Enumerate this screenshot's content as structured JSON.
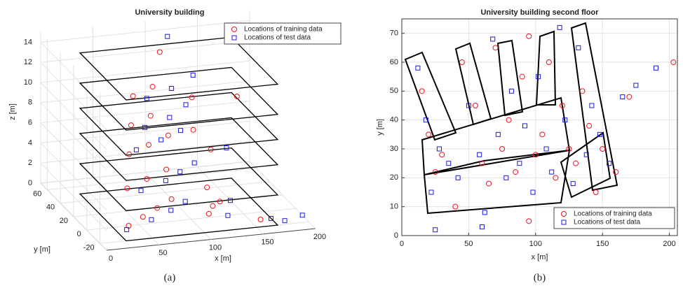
{
  "chart_data": [
    {
      "type": "scatter3d",
      "title": "University building",
      "label": "(a)",
      "xlabel": "x [m]",
      "ylabel": "y [m]",
      "zlabel": "z [m]",
      "xlim": [
        0,
        200
      ],
      "ylim": [
        -30,
        70
      ],
      "zlim": [
        0,
        15
      ],
      "xticks": [
        0,
        50,
        100,
        150,
        200
      ],
      "yticks": [
        -20,
        0,
        20,
        40,
        60
      ],
      "zticks": [
        0,
        2,
        4,
        6,
        8,
        10,
        12,
        14
      ],
      "grid": true,
      "legend": "upper right",
      "series": [
        {
          "name": "Locations of training data",
          "color": "#e8141c",
          "marker": "circle",
          "x": [
            40,
            60,
            80,
            100,
            120,
            130,
            45,
            70,
            95,
            115,
            50,
            75,
            100,
            125,
            55,
            80,
            105,
            60,
            85,
            110,
            140,
            160,
            150,
            95
          ],
          "y": [
            0,
            10,
            20,
            30,
            5,
            15,
            10,
            20,
            30,
            0,
            15,
            25,
            35,
            10,
            20,
            30,
            5,
            25,
            35,
            15,
            20,
            -10,
            10,
            40
          ],
          "z": [
            0,
            0,
            0,
            0,
            0,
            0,
            3,
            3,
            3,
            3,
            6,
            6,
            6,
            6,
            8.5,
            8.5,
            8.5,
            11,
            11,
            11,
            0,
            0,
            11,
            14
          ]
        },
        {
          "name": "Locations of test data",
          "color": "#1a1ae6",
          "marker": "square",
          "x": [
            35,
            65,
            90,
            110,
            135,
            150,
            55,
            85,
            105,
            125,
            170,
            60,
            90,
            115,
            140,
            65,
            95,
            120,
            70,
            100,
            130,
            115,
            180,
            200
          ],
          "y": [
            -5,
            5,
            15,
            25,
            0,
            20,
            5,
            15,
            25,
            35,
            -10,
            20,
            30,
            40,
            10,
            15,
            25,
            40,
            20,
            30,
            45,
            60,
            -15,
            -10
          ],
          "z": [
            0,
            0,
            0,
            0,
            0,
            0,
            3,
            3,
            3,
            3,
            0,
            6,
            6,
            6,
            6,
            8.5,
            8.5,
            8.5,
            11,
            11,
            11,
            14,
            0,
            0
          ]
        }
      ]
    },
    {
      "type": "scatter",
      "title": "University building second floor",
      "label": "(b)",
      "xlabel": "x [m]",
      "ylabel": "y [m]",
      "xlim": [
        0,
        206
      ],
      "ylim": [
        0,
        75
      ],
      "xticks": [
        0,
        50,
        100,
        150,
        200
      ],
      "yticks": [
        0,
        10,
        20,
        30,
        40,
        50,
        60,
        70
      ],
      "grid": true,
      "legend": "lower right",
      "series": [
        {
          "name": "Locations of training data",
          "color": "#e8141c",
          "marker": "circle",
          "x": [
            15,
            20,
            25,
            30,
            45,
            55,
            60,
            65,
            70,
            75,
            80,
            85,
            90,
            95,
            100,
            105,
            110,
            115,
            120,
            125,
            130,
            135,
            140,
            145,
            150,
            160,
            170,
            203,
            95,
            40
          ],
          "values": [
            50,
            35,
            22,
            28,
            60,
            45,
            25,
            18,
            65,
            30,
            40,
            22,
            55,
            5,
            28,
            35,
            60,
            20,
            45,
            30,
            25,
            50,
            38,
            15,
            30,
            22,
            48,
            60,
            69,
            10
          ]
        },
        {
          "name": "Locations of test data",
          "color": "#1a1ae6",
          "marker": "square",
          "x": [
            12,
            18,
            22,
            28,
            35,
            42,
            50,
            58,
            62,
            68,
            72,
            78,
            82,
            88,
            92,
            98,
            102,
            108,
            112,
            118,
            122,
            128,
            132,
            138,
            142,
            148,
            155,
            165,
            175,
            190,
            25,
            60
          ],
          "values": [
            58,
            40,
            15,
            30,
            25,
            20,
            45,
            28,
            8,
            68,
            35,
            20,
            50,
            25,
            38,
            15,
            55,
            30,
            22,
            72,
            40,
            18,
            65,
            28,
            45,
            35,
            25,
            48,
            52,
            58,
            2,
            3
          ]
        }
      ]
    }
  ]
}
